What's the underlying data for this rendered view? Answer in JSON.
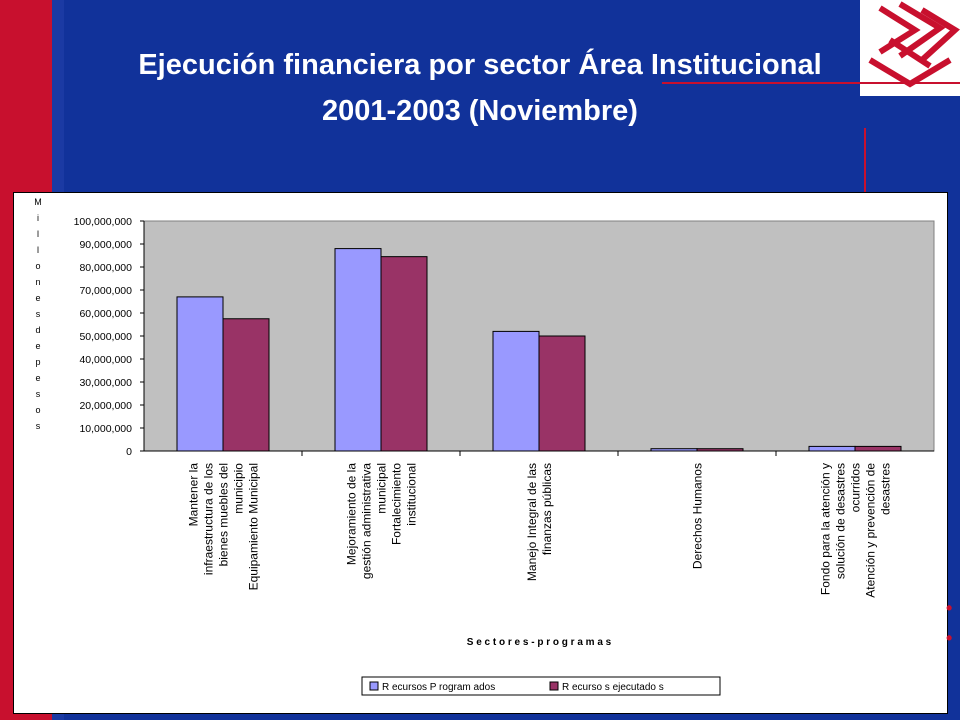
{
  "title": {
    "line1": "Ejecución financiera por sector Área Institucional",
    "line2": "2001-2003 (Noviembre)"
  },
  "colors": {
    "background": "#11329a",
    "stripe": "#c8102e",
    "plot_area": "#c0c0c0",
    "series_programados": "#9999ff",
    "series_ejecutados": "#993366"
  },
  "chart_data": {
    "type": "bar",
    "xlabel": "S e c t o r e s - p r o g r a m a s",
    "ylabel": "M i l l o n e s d e p e s o s",
    "ylim": [
      0,
      100000000
    ],
    "yticks": [
      "100,000,000",
      "90,000,000",
      "80,000,000",
      "70,000,000",
      "60,000,000",
      "50,000,000",
      "40,000,000",
      "30,000,000",
      "20,000,000",
      "10,000,000",
      "0"
    ],
    "categories": [
      [
        "Mantener la",
        "infraestructura de los",
        "bienes muebles del",
        "municipio",
        "Equipamiento Municipal"
      ],
      [
        "Mejoramiento de la",
        "gestión administrativa",
        "municipal",
        "Fortalecimiento",
        "institucional"
      ],
      [
        "Manejo Integral de las",
        "finanzas públicas"
      ],
      [
        "Derechos Humanos"
      ],
      [
        "Fondo para la atención y",
        "solución de desastres",
        "ocurridos",
        "Atención y prevención de",
        "desastres"
      ]
    ],
    "series": [
      {
        "name": "R ecursos P rogram ados",
        "values": [
          67000000,
          88000000,
          52000000,
          1000000,
          2000000
        ]
      },
      {
        "name": "R ecurso s ejecutado s",
        "values": [
          57500000,
          84500000,
          50000000,
          1000000,
          2000000
        ]
      }
    ],
    "grid": false,
    "legend": "bottom"
  }
}
